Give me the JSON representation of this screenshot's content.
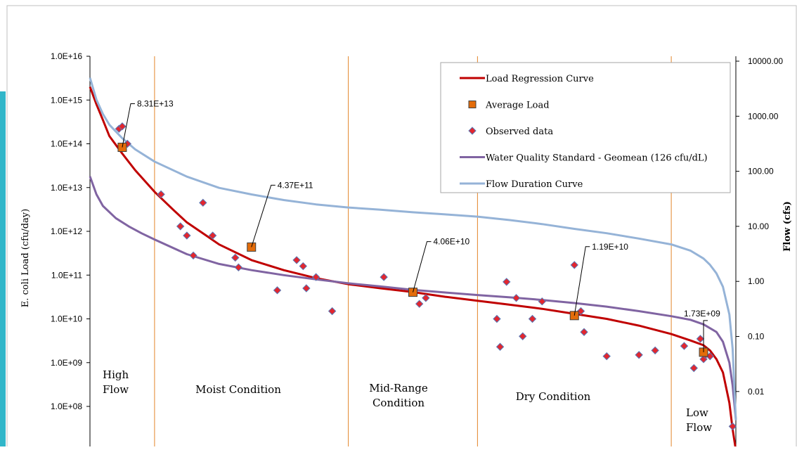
{
  "chart_data": {
    "type": "line",
    "title": "",
    "ylabel": "E. coli Load (cfu/day)",
    "y2label": "Flow (cfs)",
    "xlabel": "",
    "y_scale": "log",
    "y2_scale": "log",
    "xlim": [
      0,
      100
    ],
    "ylim": [
      10000000.0,
      1e+16
    ],
    "y2lim": [
      0.001,
      10000
    ],
    "y_ticks": [
      "1.0E+16",
      "1.0E+15",
      "1.0E+14",
      "1.0E+13",
      "1.0E+12",
      "1.0E+11",
      "1.0E+10",
      "1.0E+09",
      "1.0E+08"
    ],
    "y2_ticks": [
      "10000.00",
      "1000.00",
      "100.00",
      "10.00",
      "1.00",
      "0.10",
      "0.01"
    ],
    "zone_boundaries": [
      10,
      40,
      60,
      90
    ],
    "zones": [
      {
        "label_lines": [
          "High",
          "Flow"
        ],
        "center": 5
      },
      {
        "label_lines": [
          "Moist Condition"
        ],
        "center": 25
      },
      {
        "label_lines": [
          "Mid-Range",
          "Condition"
        ],
        "center": 50
      },
      {
        "label_lines": [
          "Dry Condition"
        ],
        "center": 75
      },
      {
        "label_lines": [
          "Low",
          "Flow"
        ],
        "center": 95
      }
    ],
    "legend": {
      "placement": "top-right",
      "entries": [
        {
          "name": "Load Regression Curve",
          "color": "#c00000",
          "marker": "line"
        },
        {
          "name": "Average Load",
          "color": "#e36c0a",
          "marker": "square"
        },
        {
          "name": "Observed data",
          "color": "#e3262e",
          "marker": "diamond"
        },
        {
          "name": "Water Quality Standard - Geomean (126 cfu/dL)",
          "color": "#8064a2",
          "marker": "line"
        },
        {
          "name": "Flow Duration Curve",
          "color": "#95b3d7",
          "marker": "line"
        }
      ]
    },
    "series": [
      {
        "name": "Load Regression Curve",
        "axis": "left",
        "color": "#c00000",
        "x": [
          0,
          1,
          2,
          3,
          5,
          7,
          10,
          13,
          15,
          18,
          20,
          25,
          30,
          35,
          40,
          45,
          50,
          55,
          60,
          65,
          70,
          75,
          80,
          85,
          90,
          93,
          95,
          96,
          97,
          98,
          99,
          99.5,
          100
        ],
        "y": [
          2000000000000000.0,
          800000000000000.0,
          350000000000000.0,
          150000000000000.0,
          60000000000000.0,
          25000000000000.0,
          8000000000000.0,
          3000000000000.0,
          1600000000000.0,
          800000000000.0,
          500000000000.0,
          220000000000.0,
          130000000000.0,
          85000000000.0,
          62000000000.0,
          50000000000.0,
          41000000000.0,
          32000000000.0,
          26000000000.0,
          21000000000.0,
          17000000000.0,
          13000000000.0,
          10000000000.0,
          7000000000.0,
          4500000000.0,
          3200000000.0,
          2500000000.0,
          1900000000.0,
          1200000000.0,
          600000000.0,
          120000000.0,
          30000000.0,
          8000000.0
        ]
      },
      {
        "name": "Water Quality Standard - Geomean (126 cfu/dL)",
        "axis": "left",
        "color": "#8064a2",
        "x": [
          0,
          1,
          2,
          4,
          6,
          8,
          10,
          15,
          20,
          25,
          30,
          35,
          40,
          45,
          50,
          55,
          60,
          65,
          70,
          75,
          80,
          85,
          90,
          93,
          95,
          97,
          98,
          99,
          99.5,
          100
        ],
        "y": [
          18000000000000.0,
          7000000000000.0,
          3800000000000.0,
          2000000000000.0,
          1300000000000.0,
          900000000000.0,
          650000000000.0,
          300000000000.0,
          180000000000.0,
          130000000000.0,
          100000000000.0,
          80000000000.0,
          65000000000.0,
          55000000000.0,
          46000000000.0,
          40000000000.0,
          35000000000.0,
          31000000000.0,
          27000000000.0,
          23000000000.0,
          19000000000.0,
          15000000000.0,
          11500000000.0,
          9500000000.0,
          7500000000.0,
          5000000000.0,
          3000000000.0,
          1000000000.0,
          300000000.0,
          50000000.0
        ]
      },
      {
        "name": "Flow Duration Curve",
        "axis": "right",
        "color": "#95b3d7",
        "x": [
          0,
          1,
          2,
          3,
          5,
          7,
          10,
          15,
          20,
          25,
          30,
          35,
          40,
          45,
          50,
          55,
          60,
          65,
          70,
          75,
          80,
          85,
          90,
          93,
          95,
          96,
          97,
          98,
          99,
          99.5,
          100
        ],
        "y": [
          5000,
          2000,
          1100,
          700,
          400,
          250,
          150,
          80,
          50,
          38,
          30,
          25,
          22,
          20,
          18,
          16.5,
          15,
          13,
          11,
          9,
          7.5,
          6,
          4.7,
          3.6,
          2.6,
          2,
          1.4,
          0.8,
          0.25,
          0.06,
          0.003
        ]
      },
      {
        "name": "Observed data",
        "axis": "left",
        "color": "#e3262e",
        "marker": "diamond",
        "x": [
          4.5,
          5.0,
          5.8,
          11.0,
          14.0,
          15.0,
          16.0,
          17.5,
          19.0,
          22.5,
          23.0,
          29.0,
          32.0,
          33.0,
          33.5,
          35.0,
          37.5,
          45.5,
          51.0,
          52.0,
          63.0,
          63.5,
          64.5,
          66.0,
          67.0,
          68.5,
          70.0,
          75.0,
          76.0,
          76.5,
          80.0,
          85.0,
          87.5,
          92.0,
          93.5,
          94.5,
          95.0,
          95.3,
          96.0,
          99.5
        ],
        "y": [
          220000000000000.0,
          250000000000000.0,
          100000000000000.0,
          7000000000000.0,
          1300000000000.0,
          800000000000.0,
          280000000000.0,
          4500000000000.0,
          800000000000.0,
          250000000000.0,
          150000000000.0,
          45000000000.0,
          220000000000.0,
          160000000000.0,
          50000000000.0,
          90000000000.0,
          15000000000.0,
          90000000000.0,
          22000000000.0,
          30000000000.0,
          10000000000.0,
          2300000000.0,
          70000000000.0,
          30000000000.0,
          4000000000.0,
          10000000000.0,
          25000000000.0,
          170000000000.0,
          15000000000.0,
          5000000000.0,
          1400000000.0,
          1500000000.0,
          1900000000.0,
          2400000000.0,
          750000000.0,
          3500000000.0,
          1200000000.0,
          1500000000.0,
          1400000000.0,
          35000000.0
        ]
      },
      {
        "name": "Average Load",
        "axis": "left",
        "color": "#e36c0a",
        "marker": "square",
        "x": [
          5,
          25,
          50,
          75,
          95
        ],
        "y": [
          83100000000000.0,
          437000000000.0,
          40600000000.0,
          11900000000.0,
          1730000000.0
        ],
        "labels": [
          "8.31E+13",
          "4.37E+11",
          "4.06E+10",
          "1.19E+10",
          "1.73E+09"
        ]
      }
    ]
  }
}
